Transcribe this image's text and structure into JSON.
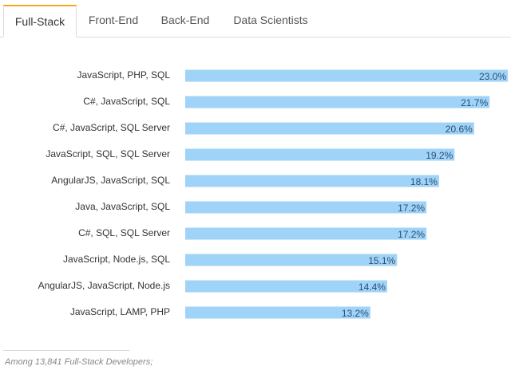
{
  "tabs": [
    {
      "label": "Full-Stack",
      "active": true
    },
    {
      "label": "Front-End",
      "active": false
    },
    {
      "label": "Back-End",
      "active": false
    },
    {
      "label": "Data Scientists",
      "active": false
    }
  ],
  "colors": {
    "bar": "#9fd3f7",
    "accent": "#f5a623",
    "value_text": "#2b4f72"
  },
  "chart_data": {
    "type": "bar",
    "orientation": "horizontal",
    "categories": [
      "JavaScript, PHP, SQL",
      "C#, JavaScript, SQL",
      "C#, JavaScript, SQL Server",
      "JavaScript, SQL, SQL Server",
      "AngularJS, JavaScript, SQL",
      "Java, JavaScript, SQL",
      "C#, SQL, SQL Server",
      "JavaScript, Node.js, SQL",
      "AngularJS, JavaScript, Node.js",
      "JavaScript, LAMP, PHP"
    ],
    "values": [
      23.0,
      21.7,
      20.6,
      19.2,
      18.1,
      17.2,
      17.2,
      15.1,
      14.4,
      13.2
    ],
    "value_labels": [
      "23.0%",
      "21.7%",
      "20.6%",
      "19.2%",
      "18.1%",
      "17.2%",
      "17.2%",
      "15.1%",
      "14.4%",
      "13.2%"
    ],
    "xlim": [
      0,
      23.0
    ],
    "unit": "%"
  },
  "footnote": "Among 13,841 Full-Stack Developers;"
}
